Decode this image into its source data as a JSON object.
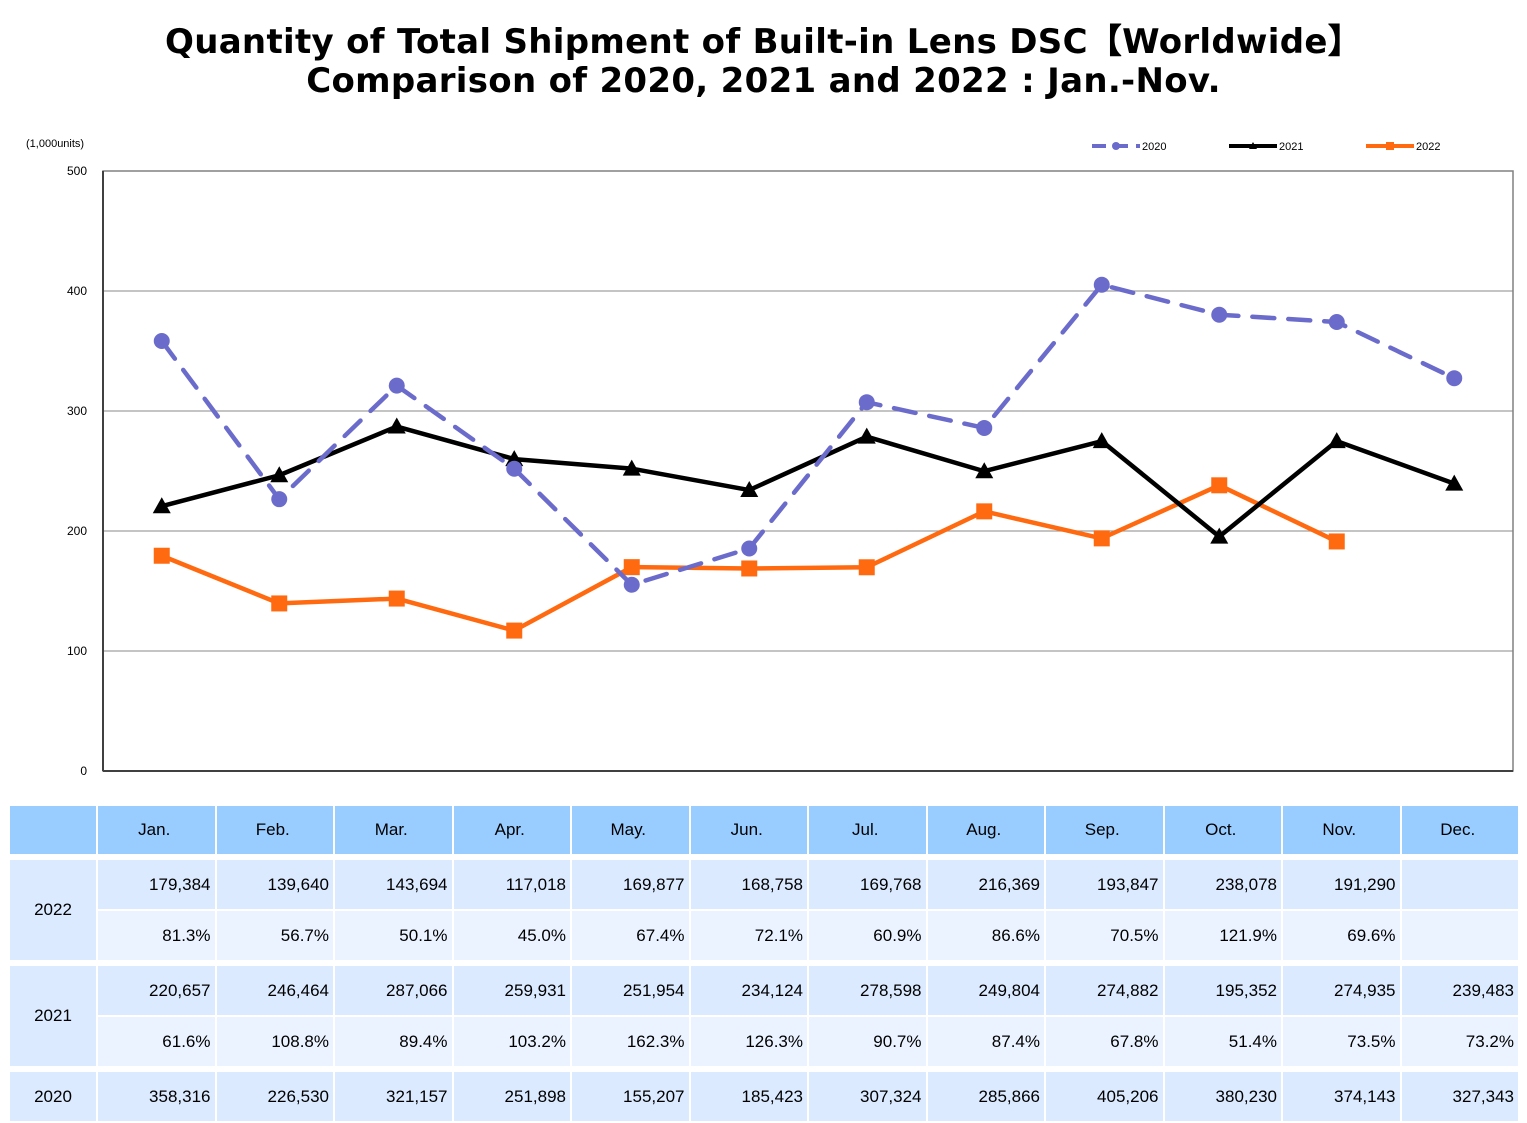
{
  "chart_data": {
    "type": "line",
    "title": "Quantity of Total Shipment of Built-in Lens DSC【Worldwide】",
    "subtitle": "Comparison of 2020, 2021 and 2022 : Jan.-Nov.",
    "ylabel": "(1,000units)",
    "xlabel": "",
    "ylim": [
      0,
      500
    ],
    "yticks": [
      "0",
      "100",
      "200",
      "300",
      "400",
      "500"
    ],
    "grid": true,
    "legend_position": "top-right",
    "categories": [
      "Jan.",
      "Feb.",
      "Mar.",
      "Apr.",
      "May.",
      "Jun.",
      "Jul.",
      "Aug.",
      "Sep.",
      "Oct.",
      "Nov.",
      "Dec."
    ],
    "series": [
      {
        "name": "2020",
        "color": "#6b6bcc",
        "style": "dashed",
        "marker": "circle",
        "values": [
          358.316,
          226.53,
          321.157,
          251.898,
          155.207,
          185.423,
          307.324,
          285.866,
          405.206,
          380.23,
          374.143,
          327.343
        ]
      },
      {
        "name": "2021",
        "color": "#000000",
        "style": "solid",
        "marker": "triangle",
        "values": [
          220.657,
          246.464,
          287.066,
          259.931,
          251.954,
          234.124,
          278.598,
          249.804,
          274.882,
          195.352,
          274.935,
          239.483
        ]
      },
      {
        "name": "2022",
        "color": "#ff6a10",
        "style": "solid",
        "marker": "square",
        "values": [
          179.384,
          139.64,
          143.694,
          117.018,
          169.877,
          168.758,
          169.768,
          216.369,
          193.847,
          238.078,
          191.29,
          null
        ]
      }
    ]
  },
  "table": {
    "headers": [
      "",
      "Jan.",
      "Feb.",
      "Mar.",
      "Apr.",
      "May.",
      "Jun.",
      "Jul.",
      "Aug.",
      "Sep.",
      "Oct.",
      "Nov.",
      "Dec."
    ],
    "rows": [
      {
        "year": "2022",
        "values": [
          "179,384",
          "139,640",
          "143,694",
          "117,018",
          "169,877",
          "168,758",
          "169,768",
          "216,369",
          "193,847",
          "238,078",
          "191,290",
          ""
        ],
        "ratios": [
          "81.3%",
          "56.7%",
          "50.1%",
          "45.0%",
          "67.4%",
          "72.1%",
          "60.9%",
          "86.6%",
          "70.5%",
          "121.9%",
          "69.6%",
          ""
        ]
      },
      {
        "year": "2021",
        "values": [
          "220,657",
          "246,464",
          "287,066",
          "259,931",
          "251,954",
          "234,124",
          "278,598",
          "249,804",
          "274,882",
          "195,352",
          "274,935",
          "239,483"
        ],
        "ratios": [
          "61.6%",
          "108.8%",
          "89.4%",
          "103.2%",
          "162.3%",
          "126.3%",
          "90.7%",
          "87.4%",
          "67.8%",
          "51.4%",
          "73.5%",
          "73.2%"
        ]
      },
      {
        "year": "2020",
        "values": [
          "358,316",
          "226,530",
          "321,157",
          "251,898",
          "155,207",
          "185,423",
          "307,324",
          "285,866",
          "405,206",
          "380,230",
          "374,143",
          "327,343"
        ]
      }
    ]
  }
}
